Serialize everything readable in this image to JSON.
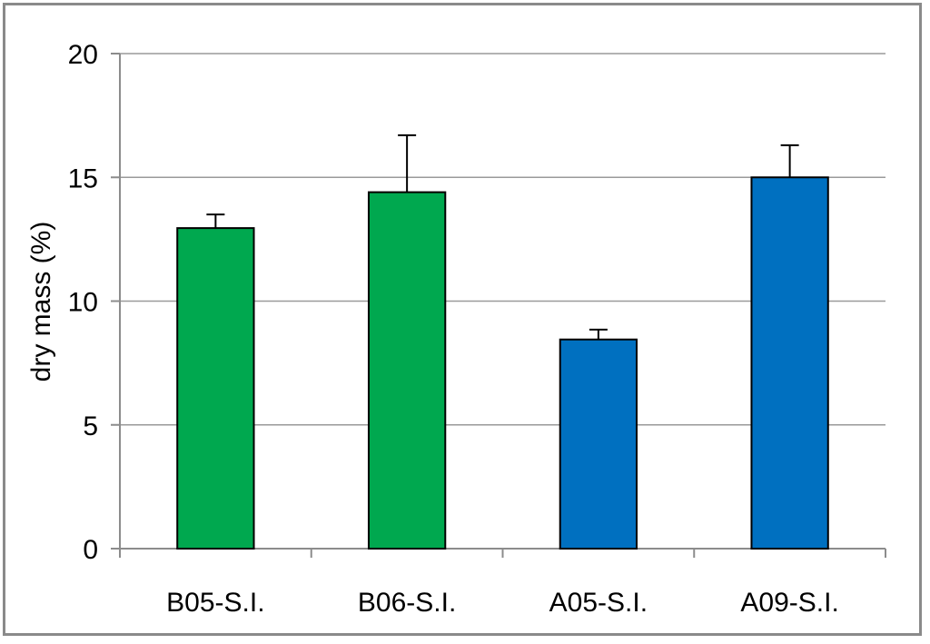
{
  "chart_data": {
    "type": "bar",
    "title": "",
    "xlabel": "",
    "ylabel": "dry mass (%)",
    "ylim": [
      0,
      20
    ],
    "yticks": [
      "0",
      "5",
      "10",
      "15",
      "20"
    ],
    "ytick_values": [
      0,
      5,
      10,
      15,
      20
    ],
    "grid": true,
    "categories": [
      "B05-S.I.",
      "B06-S.I.",
      "A05-S.I.",
      "A09-S.I."
    ],
    "values": [
      12.95,
      14.4,
      8.45,
      15.0
    ],
    "errors": [
      0.55,
      2.3,
      0.4,
      1.3
    ],
    "colors": [
      "#00a84f",
      "#00a84f",
      "#0070c0",
      "#0070c0"
    ]
  }
}
